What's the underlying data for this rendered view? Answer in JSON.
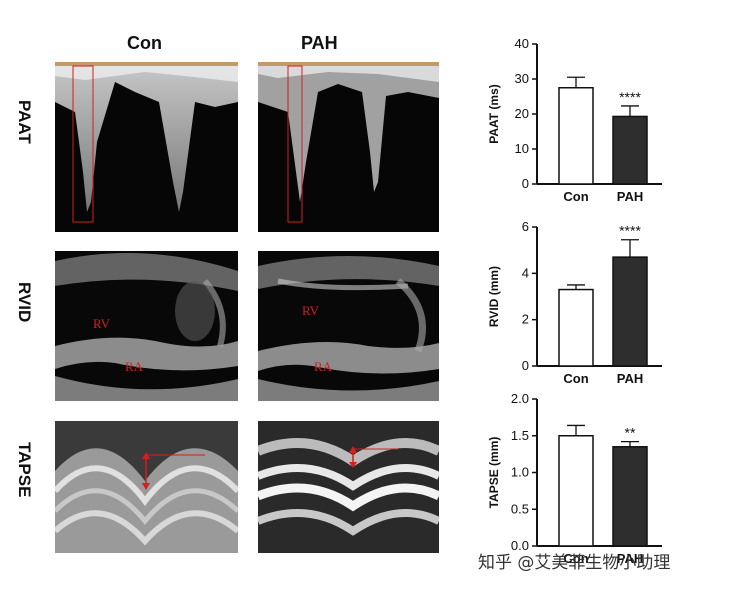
{
  "columns": [
    "Con",
    "PAH"
  ],
  "rows": [
    "PAAT",
    "RVID",
    "TAPSE"
  ],
  "chambers": {
    "rv": "RV",
    "ra": "RA"
  },
  "watermark": "知乎 @艾美菲生物小助理",
  "colors": {
    "con_bar": "#ffffff",
    "pah_bar": "#2e2e2e",
    "marker": "#d02020",
    "axis": "#111111"
  },
  "chart_data": [
    {
      "type": "bar",
      "categories": [
        "Con",
        "PAH"
      ],
      "values": [
        27.5,
        19.3
      ],
      "errors": [
        3.0,
        3.0
      ],
      "significance": [
        "",
        "****"
      ],
      "ylabel": "PAAT (ms)",
      "ylim": [
        0,
        40
      ],
      "yticks": [
        "0",
        "10",
        "20",
        "30",
        "40"
      ]
    },
    {
      "type": "bar",
      "categories": [
        "Con",
        "PAH"
      ],
      "values": [
        3.3,
        4.7
      ],
      "errors": [
        0.2,
        0.75
      ],
      "significance": [
        "",
        "****"
      ],
      "ylabel": "RVID (mm)",
      "ylim": [
        0,
        6
      ],
      "yticks": [
        "0",
        "2",
        "4",
        "6"
      ]
    },
    {
      "type": "bar",
      "categories": [
        "Con",
        "PAH"
      ],
      "values": [
        1.5,
        1.35
      ],
      "errors": [
        0.14,
        0.07
      ],
      "significance": [
        "",
        "**"
      ],
      "ylabel": "TAPSE (mm)",
      "ylim": [
        0,
        2.0
      ],
      "yticks": [
        "0.0",
        "0.5",
        "1.0",
        "1.5",
        "2.0"
      ]
    }
  ]
}
